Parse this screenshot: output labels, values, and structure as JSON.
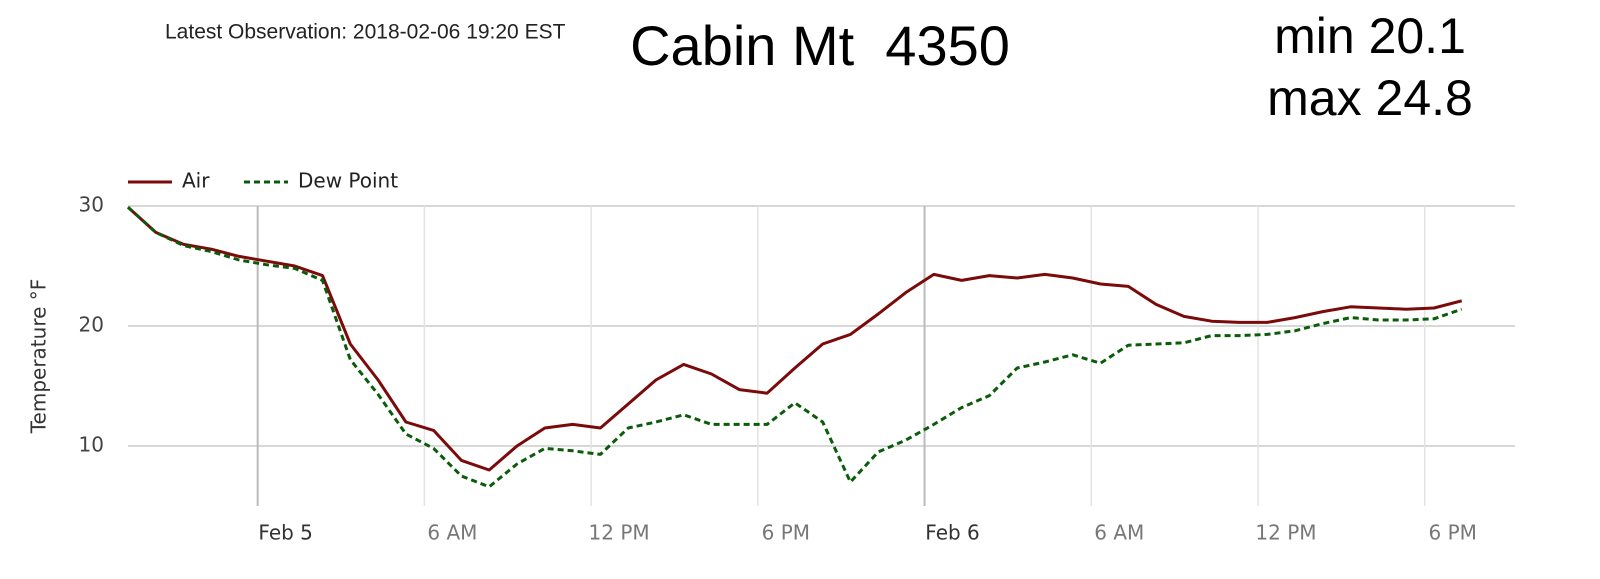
{
  "header": {
    "observation": "Latest Observation: 2018-02-06 19:20 EST",
    "station": "Cabin Mt  4350",
    "min": "min 20.1",
    "max": "max 24.8"
  },
  "chart_data": {
    "type": "line",
    "y_label": "Temperature °F",
    "grid": true,
    "legend": "top-left",
    "x": [
      "2018-02-04T19:20",
      "2018-02-04T20:20",
      "2018-02-04T21:20",
      "2018-02-04T22:20",
      "2018-02-04T23:20",
      "2018-02-05T00:20",
      "2018-02-05T01:20",
      "2018-02-05T02:20",
      "2018-02-05T03:20",
      "2018-02-05T04:20",
      "2018-02-05T05:20",
      "2018-02-05T06:20",
      "2018-02-05T07:20",
      "2018-02-05T08:20",
      "2018-02-05T09:20",
      "2018-02-05T10:20",
      "2018-02-05T11:20",
      "2018-02-05T12:20",
      "2018-02-05T13:20",
      "2018-02-05T14:20",
      "2018-02-05T15:20",
      "2018-02-05T16:20",
      "2018-02-05T17:20",
      "2018-02-05T18:20",
      "2018-02-05T19:20",
      "2018-02-05T20:20",
      "2018-02-05T21:20",
      "2018-02-05T22:20",
      "2018-02-05T23:20",
      "2018-02-06T00:20",
      "2018-02-06T01:20",
      "2018-02-06T02:20",
      "2018-02-06T03:20",
      "2018-02-06T04:20",
      "2018-02-06T05:20",
      "2018-02-06T06:20",
      "2018-02-06T07:20",
      "2018-02-06T08:20",
      "2018-02-06T09:20",
      "2018-02-06T10:20",
      "2018-02-06T11:20",
      "2018-02-06T12:20",
      "2018-02-06T13:20",
      "2018-02-06T14:20",
      "2018-02-06T15:20",
      "2018-02-06T16:20",
      "2018-02-06T17:20",
      "2018-02-06T18:20",
      "2018-02-06T19:20"
    ],
    "series": [
      {
        "name": "Air",
        "color": "#7b0a0a",
        "dash": false,
        "values": [
          29.9,
          27.8,
          26.8,
          26.4,
          25.8,
          25.4,
          25.0,
          24.2,
          18.5,
          15.5,
          12.0,
          11.3,
          8.8,
          8.0,
          10.0,
          11.5,
          11.8,
          11.5,
          13.5,
          15.5,
          16.8,
          16.0,
          14.7,
          14.4,
          16.5,
          18.5,
          19.3,
          21.0,
          22.8,
          24.3,
          23.8,
          24.2,
          24.0,
          24.3,
          24.0,
          23.5,
          23.3,
          21.8,
          20.8,
          20.4,
          20.3,
          20.3,
          20.7,
          21.2,
          21.6,
          21.5,
          21.4,
          21.5,
          22.1
        ]
      },
      {
        "name": "Dew Point",
        "color": "#0a5c0a",
        "dash": true,
        "values": [
          29.9,
          27.8,
          26.7,
          26.2,
          25.5,
          25.1,
          24.8,
          23.8,
          17.2,
          14.3,
          11.0,
          9.8,
          7.5,
          6.6,
          8.5,
          9.8,
          9.6,
          9.3,
          11.5,
          12.0,
          12.6,
          11.8,
          11.8,
          11.8,
          13.6,
          12.0,
          7.0,
          9.5,
          10.5,
          11.8,
          13.2,
          14.2,
          16.5,
          17.0,
          17.6,
          16.9,
          18.4,
          18.5,
          18.6,
          19.2,
          19.2,
          19.3,
          19.6,
          20.2,
          20.7,
          20.5,
          20.5,
          20.6,
          21.4
        ]
      }
    ],
    "xlim": [
      "2018-02-04T19:20",
      "2018-02-06T21:15"
    ],
    "xticks": [
      {
        "value": "2018-02-05T00:00",
        "label": "Feb 5"
      },
      {
        "value": "2018-02-05T06:00",
        "label": "6 AM"
      },
      {
        "value": "2018-02-05T12:00",
        "label": "12 PM"
      },
      {
        "value": "2018-02-05T18:00",
        "label": "6 PM"
      },
      {
        "value": "2018-02-06T00:00",
        "label": "Feb 6"
      },
      {
        "value": "2018-02-06T06:00",
        "label": "6 AM"
      },
      {
        "value": "2018-02-06T12:00",
        "label": "12 PM"
      },
      {
        "value": "2018-02-06T18:00",
        "label": "6 PM"
      }
    ],
    "ylim": [
      5,
      30
    ],
    "yticks": [
      10,
      20,
      30
    ]
  }
}
